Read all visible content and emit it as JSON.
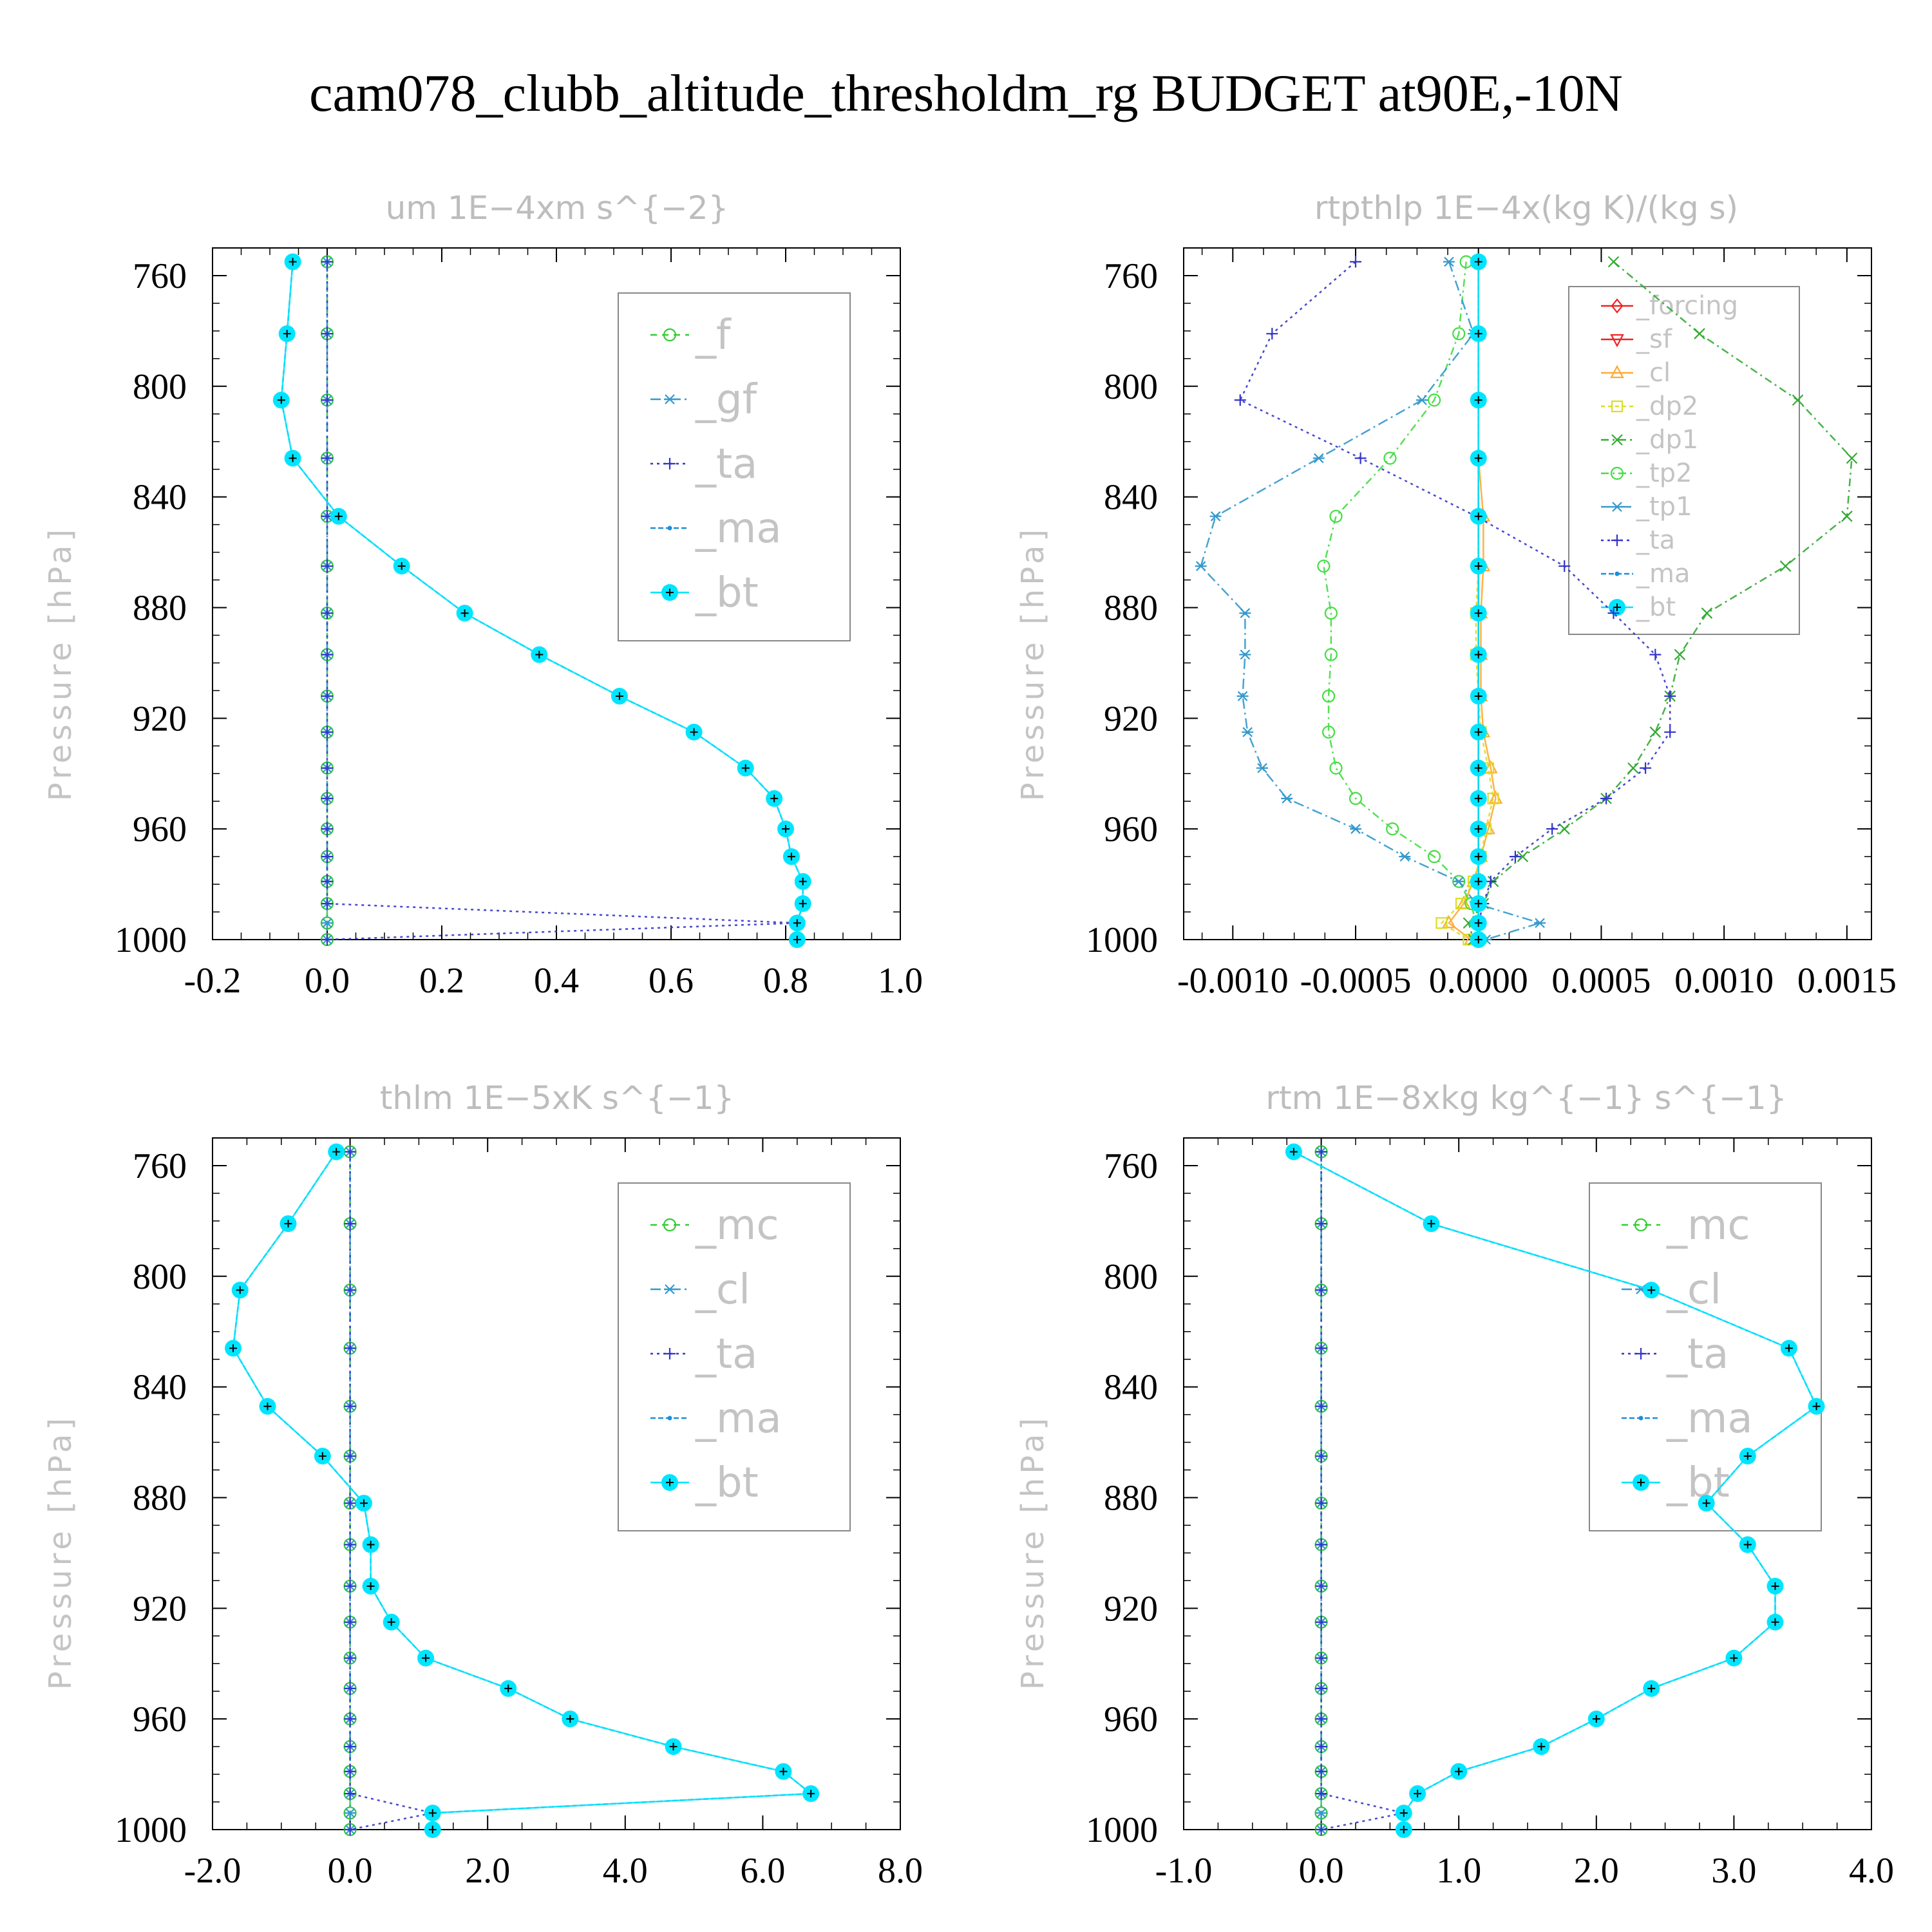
{
  "figure_title": "cam078_clubb_altitude_thresholdm_rg  BUDGET at90E,-10N",
  "chart_data": [
    {
      "type": "line",
      "title": "um   1E−4xm s^{−2}",
      "ylabel": "Pressure [hPa]",
      "xlim": [
        -0.2,
        1.0
      ],
      "ylim": [
        750,
        1000
      ],
      "y_reversed": true,
      "xticks": [
        -0.2,
        0.0,
        0.2,
        0.4,
        0.6,
        0.8,
        1.0
      ],
      "xtick_labels": [
        "-0.2",
        "0.0",
        "0.2",
        "0.4",
        "0.6",
        "0.8",
        "1.0"
      ],
      "yticks": [
        760,
        800,
        840,
        880,
        920,
        960,
        1000
      ],
      "ytick_labels": [
        "760",
        "800",
        "840",
        "880",
        "920",
        "960",
        "1000"
      ],
      "legend_box": "big",
      "levels": [
        755,
        781,
        805,
        826,
        847,
        865,
        882,
        897,
        912,
        925,
        938,
        949,
        960,
        970,
        979,
        987,
        994,
        1000
      ],
      "series": [
        {
          "name": "_f",
          "color": "#33cc33",
          "marker": "circle",
          "dash": "10,8",
          "values": [
            0,
            0,
            0,
            0,
            0,
            0,
            0,
            0,
            0,
            0,
            0,
            0,
            0,
            0,
            0,
            0,
            0,
            0
          ]
        },
        {
          "name": "_gf",
          "color": "#3399cc",
          "marker": "star",
          "dash": "16,6,3,6",
          "values": [
            0,
            0,
            0,
            0,
            0,
            0,
            0,
            0,
            0,
            0,
            0,
            0,
            0,
            0,
            0,
            0,
            0,
            0
          ]
        },
        {
          "name": "_ta",
          "color": "#3333cc",
          "marker": "plus",
          "dash": "4,6",
          "values": [
            0,
            0,
            0,
            0,
            0,
            0,
            0,
            0,
            0,
            0,
            0,
            0,
            0,
            0,
            0,
            0,
            0.82,
            0
          ]
        },
        {
          "name": "_ma",
          "color": "#1b8fd6",
          "marker": "dot",
          "dash": "8,4",
          "values": [
            -0.06,
            -0.07,
            -0.08,
            -0.06,
            0.02,
            0.13,
            0.24,
            0.37,
            0.51,
            0.64,
            0.73,
            0.78,
            0.8,
            0.81,
            0.83,
            0.83,
            0.82,
            0.82
          ]
        },
        {
          "name": "_bt",
          "color": "#00e5ff",
          "marker": "bigdot",
          "dash": "",
          "values": [
            -0.06,
            -0.07,
            -0.08,
            -0.06,
            0.02,
            0.13,
            0.24,
            0.37,
            0.51,
            0.64,
            0.73,
            0.78,
            0.8,
            0.81,
            0.83,
            0.83,
            0.82,
            0.82
          ]
        }
      ]
    },
    {
      "type": "line",
      "title": "rtpthlp   1E−4x(kg K)/(kg s)",
      "ylabel": "Pressure [hPa]",
      "xlim": [
        -0.0012,
        0.0016
      ],
      "ylim": [
        750,
        1000
      ],
      "y_reversed": true,
      "xticks": [
        -0.001,
        -0.0005,
        0.0,
        0.0005,
        0.001,
        0.0015
      ],
      "xtick_labels": [
        "-0.0010",
        "-0.0005",
        "0.0000",
        "0.0005",
        "0.0010",
        "0.0015"
      ],
      "yticks": [
        760,
        800,
        840,
        880,
        920,
        960,
        1000
      ],
      "ytick_labels": [
        "760",
        "800",
        "840",
        "880",
        "920",
        "960",
        "1000"
      ],
      "legend_box": "small",
      "levels": [
        755,
        781,
        805,
        826,
        847,
        865,
        882,
        897,
        912,
        925,
        938,
        949,
        960,
        970,
        979,
        987,
        994,
        1000
      ],
      "series": [
        {
          "name": "_forcing",
          "color": "#ee2222",
          "marker": "diamond",
          "dash": "",
          "values": [
            0,
            0,
            0,
            0,
            0,
            0,
            0,
            0,
            0,
            0,
            0,
            0,
            0,
            0,
            0,
            0,
            0,
            0
          ]
        },
        {
          "name": "_sf",
          "color": "#ee2222",
          "marker": "triangle-down",
          "dash": "",
          "values": [
            0,
            0,
            0,
            0,
            0,
            0,
            0,
            0,
            0,
            0,
            0,
            0,
            0,
            0,
            0,
            0,
            0,
            0
          ]
        },
        {
          "name": "_cl",
          "color": "#ffaa33",
          "marker": "triangle",
          "dash": "",
          "values": [
            0,
            0,
            0,
            0,
            2e-05,
            2e-05,
            1e-05,
            1e-05,
            1e-05,
            2e-05,
            5e-05,
            7e-05,
            4e-05,
            1e-05,
            -2e-05,
            -6e-05,
            -0.00012,
            -3e-05
          ]
        },
        {
          "name": "_dp2",
          "color": "#dddd22",
          "marker": "square",
          "dash": "6,5",
          "values": [
            0,
            0,
            0,
            0,
            0,
            0,
            -1e-05,
            -1e-05,
            0,
            1e-05,
            4e-05,
            6e-05,
            3e-05,
            1e-05,
            -2e-05,
            -7e-05,
            -0.00015,
            -4e-05
          ]
        },
        {
          "name": "_dp1",
          "color": "#33aa33",
          "marker": "x",
          "dash": "12,6,3,6",
          "values": [
            0.00055,
            0.0009,
            0.0013,
            0.00152,
            0.0015,
            0.00125,
            0.00093,
            0.00082,
            0.00078,
            0.00072,
            0.00063,
            0.00052,
            0.00035,
            0.00018,
            6e-05,
            2e-05,
            -4e-05,
            -2e-05
          ]
        },
        {
          "name": "_tp2",
          "color": "#44dd44",
          "marker": "circle",
          "dash": "12,6,3,6",
          "values": [
            -5e-05,
            -8e-05,
            -0.00018,
            -0.00036,
            -0.00058,
            -0.00063,
            -0.0006,
            -0.0006,
            -0.00061,
            -0.00061,
            -0.00058,
            -0.0005,
            -0.00035,
            -0.00018,
            -8e-05,
            -3e-05,
            -1e-05,
            1e-05
          ]
        },
        {
          "name": "_tp1",
          "color": "#3399cc",
          "marker": "star",
          "dash": "16,6,3,6",
          "values": [
            -0.00012,
            -2e-05,
            -0.00023,
            -0.00065,
            -0.00107,
            -0.00113,
            -0.00095,
            -0.00095,
            -0.00096,
            -0.00094,
            -0.00088,
            -0.00078,
            -0.0005,
            -0.0003,
            -8e-05,
            -1e-05,
            0.00025,
            3e-05
          ]
        },
        {
          "name": "_ta",
          "color": "#3333cc",
          "marker": "plus",
          "dash": "4,6",
          "values": [
            -0.0005,
            -0.00084,
            -0.00097,
            -0.00048,
            -1e-05,
            0.00035,
            0.00055,
            0.00072,
            0.00078,
            0.00078,
            0.00068,
            0.00052,
            0.0003,
            0.00015,
            5e-05,
            2e-05,
            0,
            0
          ]
        },
        {
          "name": "_ma",
          "color": "#1b8fd6",
          "marker": "dot",
          "dash": "8,4",
          "values": [
            0,
            0,
            0,
            0,
            0,
            0,
            0,
            0,
            0,
            0,
            0,
            0,
            0,
            0,
            0,
            0,
            0,
            0
          ]
        },
        {
          "name": "_bt",
          "color": "#00e5ff",
          "marker": "bigdot",
          "dash": "",
          "values": [
            0,
            0,
            0,
            0,
            0,
            0,
            0,
            0,
            0,
            0,
            0,
            0,
            0,
            0,
            0,
            0,
            0,
            0
          ]
        }
      ]
    },
    {
      "type": "line",
      "title": "thlm   1E−5xK s^{−1}",
      "ylabel": "Pressure [hPa]",
      "xlim": [
        -2.0,
        8.0
      ],
      "ylim": [
        750,
        1000
      ],
      "y_reversed": true,
      "xticks": [
        -2.0,
        0.0,
        2.0,
        4.0,
        6.0,
        8.0
      ],
      "xtick_labels": [
        "-2.0",
        "0.0",
        "2.0",
        "4.0",
        "6.0",
        "8.0"
      ],
      "yticks": [
        760,
        800,
        840,
        880,
        920,
        960,
        1000
      ],
      "ytick_labels": [
        "760",
        "800",
        "840",
        "880",
        "920",
        "960",
        "1000"
      ],
      "legend_box": "big",
      "levels": [
        755,
        781,
        805,
        826,
        847,
        865,
        882,
        897,
        912,
        925,
        938,
        949,
        960,
        970,
        979,
        987,
        994,
        1000
      ],
      "series": [
        {
          "name": "_mc",
          "color": "#33cc33",
          "marker": "circle",
          "dash": "10,8",
          "values": [
            0,
            0,
            0,
            0,
            0,
            0,
            0,
            0,
            0,
            0,
            0,
            0,
            0,
            0,
            0,
            0,
            0,
            0
          ]
        },
        {
          "name": "_cl",
          "color": "#3399cc",
          "marker": "star",
          "dash": "16,6,3,6",
          "values": [
            0,
            0,
            0,
            0,
            0,
            0,
            0,
            0,
            0,
            0,
            0,
            0,
            0,
            0,
            0,
            0,
            0,
            0
          ]
        },
        {
          "name": "_ta",
          "color": "#3333cc",
          "marker": "plus",
          "dash": "4,6",
          "values": [
            0,
            0,
            0,
            0,
            0,
            0,
            0,
            0,
            0,
            0,
            0,
            0,
            0,
            0,
            0,
            0,
            1.2,
            0
          ]
        },
        {
          "name": "_ma",
          "color": "#1b8fd6",
          "marker": "dot",
          "dash": "8,4",
          "values": [
            -0.2,
            -0.9,
            -1.6,
            -1.7,
            -1.2,
            -0.4,
            0.2,
            0.3,
            0.3,
            0.6,
            1.1,
            2.3,
            3.2,
            4.7,
            6.3,
            6.7,
            1.2,
            1.2
          ]
        },
        {
          "name": "_bt",
          "color": "#00e5ff",
          "marker": "bigdot",
          "dash": "",
          "values": [
            -0.2,
            -0.9,
            -1.6,
            -1.7,
            -1.2,
            -0.4,
            0.2,
            0.3,
            0.3,
            0.6,
            1.1,
            2.3,
            3.2,
            4.7,
            6.3,
            6.7,
            1.2,
            1.2
          ]
        }
      ]
    },
    {
      "type": "line",
      "title": "rtm   1E−8xkg kg^{−1} s^{−1}",
      "ylabel": "Pressure [hPa]",
      "xlim": [
        -1.0,
        4.0
      ],
      "ylim": [
        750,
        1000
      ],
      "y_reversed": true,
      "xticks": [
        -1.0,
        0.0,
        1.0,
        2.0,
        3.0,
        4.0
      ],
      "xtick_labels": [
        "-1.0",
        "0.0",
        "1.0",
        "2.0",
        "3.0",
        "4.0"
      ],
      "yticks": [
        760,
        800,
        840,
        880,
        920,
        960,
        1000
      ],
      "ytick_labels": [
        "760",
        "800",
        "840",
        "880",
        "920",
        "960",
        "1000"
      ],
      "legend_box": "big",
      "levels": [
        755,
        781,
        805,
        826,
        847,
        865,
        882,
        897,
        912,
        925,
        938,
        949,
        960,
        970,
        979,
        987,
        994,
        1000
      ],
      "series": [
        {
          "name": "_mc",
          "color": "#33cc33",
          "marker": "circle",
          "dash": "10,8",
          "values": [
            0,
            0,
            0,
            0,
            0,
            0,
            0,
            0,
            0,
            0,
            0,
            0,
            0,
            0,
            0,
            0,
            0,
            0
          ]
        },
        {
          "name": "_cl",
          "color": "#3399cc",
          "marker": "star",
          "dash": "16,6,3,6",
          "values": [
            0,
            0,
            0,
            0,
            0,
            0,
            0,
            0,
            0,
            0,
            0,
            0,
            0,
            0,
            0,
            0,
            0,
            0
          ]
        },
        {
          "name": "_ta",
          "color": "#3333cc",
          "marker": "plus",
          "dash": "4,6",
          "values": [
            0,
            0,
            0,
            0,
            0,
            0,
            0,
            0,
            0,
            0,
            0,
            0,
            0,
            0,
            0,
            0,
            0.6,
            0
          ]
        },
        {
          "name": "_ma",
          "color": "#1b8fd6",
          "marker": "dot",
          "dash": "8,4",
          "values": [
            -0.2,
            0.8,
            2.4,
            3.4,
            3.6,
            3.1,
            2.8,
            3.1,
            3.3,
            3.3,
            3.0,
            2.4,
            2.0,
            1.6,
            1.0,
            0.7,
            0.6,
            0.6
          ]
        },
        {
          "name": "_bt",
          "color": "#00e5ff",
          "marker": "bigdot",
          "dash": "",
          "values": [
            -0.2,
            0.8,
            2.4,
            3.4,
            3.6,
            3.1,
            2.8,
            3.1,
            3.3,
            3.3,
            3.0,
            2.4,
            2.0,
            1.6,
            1.0,
            0.7,
            0.6,
            0.6
          ]
        }
      ]
    }
  ]
}
